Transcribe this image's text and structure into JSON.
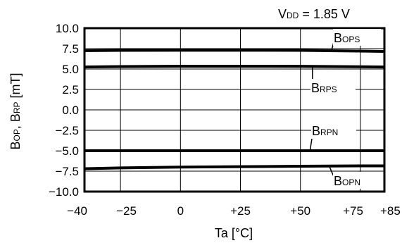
{
  "chart_data": {
    "type": "line",
    "annotation": {
      "main": "V",
      "sub": "DD",
      "rest": " = 1.85 V"
    },
    "xlabel": "Ta [°C]",
    "ylabel": {
      "b1": "B",
      "s1": "OP",
      "mid": ", B",
      "s2": "RP",
      "rest": " [mT]"
    },
    "x_ticks": [
      -40,
      -25,
      0,
      25,
      50,
      75,
      85
    ],
    "x_tick_labels": [
      "−40",
      "−25",
      "0",
      "+25",
      "+50",
      "+75",
      "+85"
    ],
    "y_ticks": [
      10,
      7.5,
      5,
      2.5,
      0,
      -2.5,
      -5,
      -7.5,
      -10
    ],
    "y_tick_labels": [
      "10.0",
      "7.5",
      "5.0",
      "2.5",
      "0.0",
      "−2.5",
      "−5.0",
      "−7.5",
      "−10.0"
    ],
    "xlim": [
      -40,
      85
    ],
    "ylim": [
      -10,
      10
    ],
    "grid": true,
    "series": [
      {
        "id": "bops",
        "label_main": "B",
        "label_sub": "OPS",
        "x": [
          -40,
          -25,
          0,
          25,
          50,
          75,
          85
        ],
        "y": [
          7.25,
          7.28,
          7.3,
          7.3,
          7.28,
          7.2,
          7.15
        ]
      },
      {
        "id": "brps",
        "label_main": "B",
        "label_sub": "RPS",
        "x": [
          -40,
          -25,
          0,
          25,
          50,
          75,
          85
        ],
        "y": [
          5.25,
          5.3,
          5.35,
          5.35,
          5.33,
          5.28,
          5.25
        ]
      },
      {
        "id": "brpn",
        "label_main": "B",
        "label_sub": "RPN",
        "x": [
          -40,
          -25,
          0,
          25,
          50,
          75,
          85
        ],
        "y": [
          -5.0,
          -5.0,
          -5.0,
          -5.0,
          -5.0,
          -5.0,
          -5.0
        ]
      },
      {
        "id": "bopn",
        "label_main": "B",
        "label_sub": "OPN",
        "x": [
          -40,
          -25,
          0,
          25,
          50,
          75,
          85
        ],
        "y": [
          -7.2,
          -7.1,
          -7.0,
          -6.95,
          -6.9,
          -6.85,
          -6.85
        ]
      }
    ]
  }
}
